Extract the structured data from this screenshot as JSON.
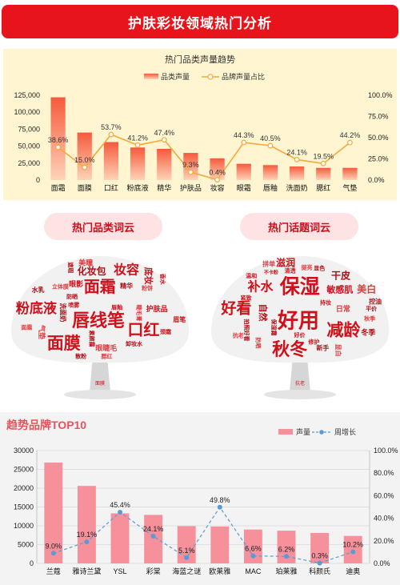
{
  "header": {
    "title": "护肤彩妆领域热门分析"
  },
  "sections": {
    "category_cloud": "热门品类词云",
    "topic_cloud": "热门话题词云",
    "top10_title": "趋势品牌TOP10"
  },
  "cloud_words": {
    "category": [
      {
        "t": "唇线笔",
        "s": 22
      },
      {
        "t": "面膜",
        "s": 21
      },
      {
        "t": "妆容",
        "s": 16
      },
      {
        "t": "面霜",
        "s": 20
      },
      {
        "t": "粉底液",
        "s": 17
      },
      {
        "t": "口红",
        "s": 20
      },
      {
        "t": "化妆包",
        "s": 12
      },
      {
        "t": "护肤品",
        "s": 9
      },
      {
        "t": "立体膜",
        "s": 7
      },
      {
        "t": "水乳",
        "s": 8
      },
      {
        "t": "眼影",
        "s": 9
      },
      {
        "t": "眼睫毛",
        "s": 9
      },
      {
        "t": "洗面奶",
        "s": 8
      },
      {
        "t": "底妆",
        "s": 11
      },
      {
        "t": "美瞳",
        "s": 9
      },
      {
        "t": "素颜霜",
        "s": 7
      },
      {
        "t": "唇釉",
        "s": 7
      },
      {
        "t": "腮红",
        "s": 7
      },
      {
        "t": "卸妆水",
        "s": 7
      },
      {
        "t": "眉笔",
        "s": 8
      },
      {
        "t": "气垫",
        "s": 9
      },
      {
        "t": "精华",
        "s": 8
      },
      {
        "t": "喷雾",
        "s": 7
      },
      {
        "t": "睫毛膏",
        "s": 7
      },
      {
        "t": "防晒",
        "s": 7
      },
      {
        "t": "香水",
        "s": 7
      },
      {
        "t": "面霜",
        "s": 7
      },
      {
        "t": "遮瑕",
        "s": 7
      },
      {
        "t": "颈霜",
        "s": 7
      },
      {
        "t": "粉饼",
        "s": 7
      },
      {
        "t": "散粉",
        "s": 7
      }
    ],
    "topic": [
      {
        "t": "好用",
        "s": 26
      },
      {
        "t": "保湿",
        "s": 25
      },
      {
        "t": "好看",
        "s": 19
      },
      {
        "t": "减龄",
        "s": 21
      },
      {
        "t": "秋冬",
        "s": 22
      },
      {
        "t": "补水",
        "s": 16
      },
      {
        "t": "干皮",
        "s": 12
      },
      {
        "t": "敏感肌",
        "s": 11
      },
      {
        "t": "美白",
        "s": 12
      },
      {
        "t": "自然",
        "s": 11
      },
      {
        "t": "滋润",
        "s": 12
      },
      {
        "t": "日常",
        "s": 9
      },
      {
        "t": "冬季",
        "s": 9
      },
      {
        "t": "好价",
        "s": 7
      },
      {
        "t": "秋季",
        "s": 7
      },
      {
        "t": "新手",
        "s": 8
      },
      {
        "t": "持妆",
        "s": 7
      },
      {
        "t": "拼单",
        "s": 8
      },
      {
        "t": "拍照好看",
        "s": 7
      },
      {
        "t": "紧致",
        "s": 7
      },
      {
        "t": "显白",
        "s": 8
      },
      {
        "t": "控油",
        "s": 8
      },
      {
        "t": "温和",
        "s": 7
      },
      {
        "t": "抗老",
        "s": 7
      },
      {
        "t": "平价",
        "s": 7
      },
      {
        "t": "清透",
        "s": 7
      },
      {
        "t": "提亮",
        "s": 7
      },
      {
        "t": "显色",
        "s": 7
      },
      {
        "t": "不卡粉",
        "s": 6
      },
      {
        "t": "防晒",
        "s": 7
      },
      {
        "t": "保湿霜",
        "s": 7
      },
      {
        "t": "修护",
        "s": 7
      }
    ],
    "category_trunk": "面膜",
    "topic_trunk": "抗老"
  },
  "chart_data": [
    {
      "type": "bar",
      "title": "热门品类声量趋势",
      "categories": [
        "面霜",
        "面膜",
        "口红",
        "粉底液",
        "精华",
        "护肤品",
        "妆容",
        "眼霜",
        "唇釉",
        "洗面奶",
        "腮红",
        "气垫"
      ],
      "series": [
        {
          "name": "品类声量",
          "type": "bar",
          "values": [
            122000,
            70000,
            56000,
            48000,
            46000,
            40000,
            32000,
            24000,
            22000,
            20000,
            18000,
            18000
          ]
        },
        {
          "name": "品牌声量占比",
          "type": "line",
          "axis": "right",
          "values": [
            38.6,
            15.0,
            53.7,
            41.2,
            47.4,
            9.3,
            0.4,
            44.3,
            40.5,
            24.1,
            19.5,
            44.2
          ]
        }
      ],
      "ylim": [
        0,
        125000
      ],
      "y_ticks": [
        "0",
        "25,000",
        "50,000",
        "75,000",
        "100,000",
        "125,000"
      ],
      "y2lim": [
        0,
        100
      ],
      "y2_ticks": [
        "0.0%",
        "25.0%",
        "50.0%",
        "75.0%",
        "100.0%"
      ],
      "grid": false,
      "legend": "top"
    },
    {
      "type": "bar",
      "title": "",
      "categories": [
        "兰蔻",
        "雅诗兰黛",
        "YSL",
        "彩棠",
        "海蓝之谜",
        "欧莱雅",
        "MAC",
        "珀莱雅",
        "科颜氏",
        "迪奥"
      ],
      "series": [
        {
          "name": "声量",
          "type": "bar",
          "values": [
            26800,
            20600,
            13300,
            12900,
            9900,
            9800,
            9000,
            8700,
            8100,
            7300
          ]
        },
        {
          "name": "周增长",
          "type": "line",
          "axis": "right",
          "values": [
            9.0,
            19.1,
            45.4,
            24.1,
            5.1,
            49.8,
            6.6,
            6.2,
            0.3,
            10.2
          ]
        }
      ],
      "ylim": [
        0,
        30000
      ],
      "y_ticks": [
        "0",
        "5000",
        "10000",
        "15000",
        "20000",
        "25000",
        "30000"
      ],
      "y2lim": [
        0,
        100
      ],
      "y2_ticks": [
        "0.0%",
        "20.0%",
        "40.0%",
        "60.0%",
        "80.0%",
        "100.0%"
      ],
      "grid": true,
      "legend": "top-right"
    }
  ],
  "colors": {
    "brand_red": "#e8141b",
    "bar_orange_top": "#f55a3c",
    "bar_orange_bottom": "#ffd3b8",
    "line_gold": "#f3a93b",
    "bar_pink": "#f6909b",
    "line_blue": "#5b9bd5",
    "word_red": "#d0101a",
    "tree_gray": "#d6d6d6"
  }
}
